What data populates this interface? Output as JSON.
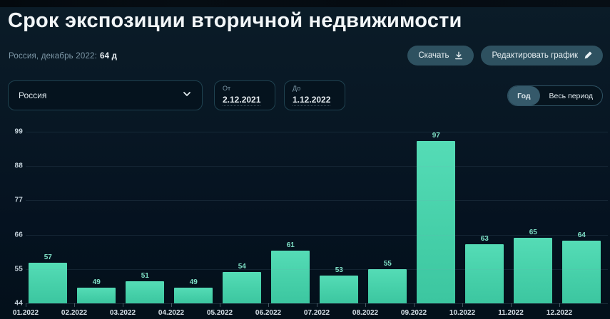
{
  "page": {
    "title": "Срок экспозиции вторичной недвижимости"
  },
  "meta": {
    "summary_prefix": "Россия, декабрь 2022:",
    "summary_value": "64 д"
  },
  "toolbar": {
    "download_label": "Скачать",
    "edit_label": "Редактировать график"
  },
  "filters": {
    "region": {
      "value": "Россия"
    },
    "date_from": {
      "label": "От",
      "value": "2.12.2021"
    },
    "date_to": {
      "label": "До",
      "value": "1.12.2022"
    },
    "period_toggle": {
      "options": [
        "Год",
        "Весь период"
      ],
      "selected": "Год"
    }
  },
  "chart_data": {
    "type": "bar",
    "title": "Срок экспозиции вторичной недвижимости",
    "categories": [
      "01.2022",
      "02.2022",
      "03.2022",
      "04.2022",
      "05.2022",
      "06.2022",
      "07.2022",
      "08.2022",
      "09.2022",
      "10.2022",
      "11.2022",
      "12.2022"
    ],
    "values": [
      57,
      49,
      51,
      49,
      54,
      61,
      53,
      55,
      97,
      63,
      65,
      64
    ],
    "unit": "дней",
    "xlabel": "",
    "ylabel": "",
    "ylim": [
      44,
      99
    ],
    "yticks": [
      44,
      55,
      66,
      77,
      88,
      99
    ],
    "grid": true,
    "legend": false,
    "colors": {
      "bar": "#46d0a9",
      "value_label": "#7edfc5",
      "background": "#07131e"
    }
  }
}
